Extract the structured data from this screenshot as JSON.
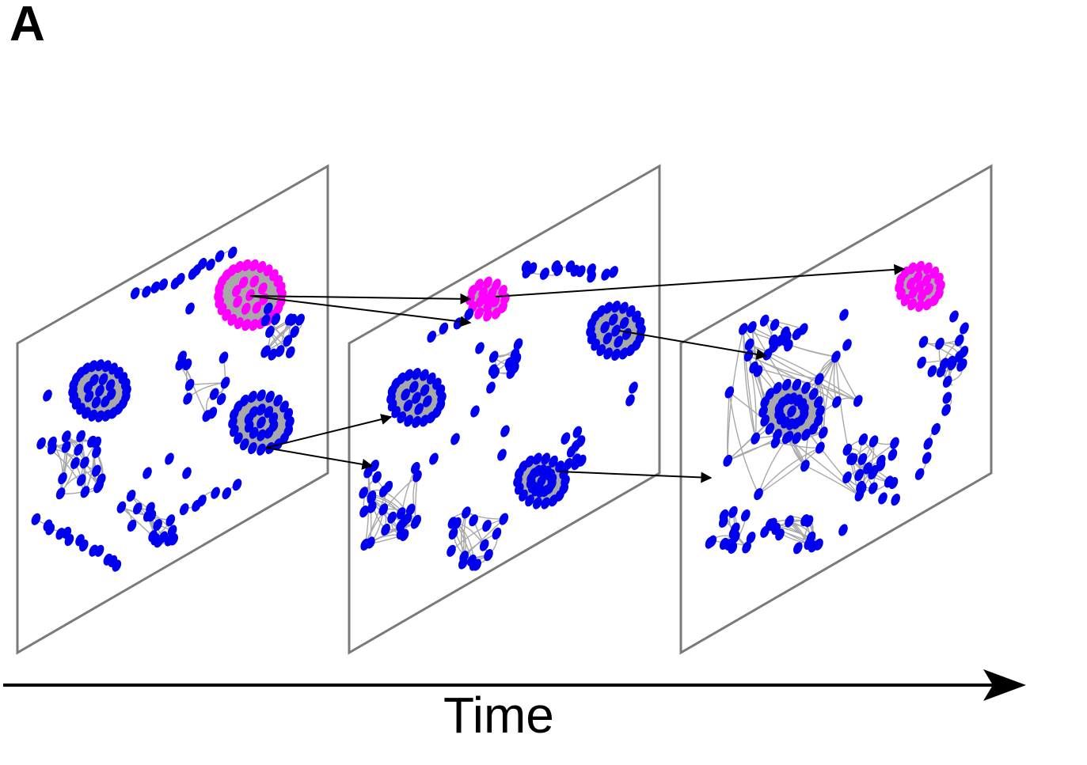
{
  "figure": {
    "panel_label": "A",
    "axis_label": "Time"
  },
  "colors": {
    "node_default": "#0000ee",
    "node_highlight": "#ff00ff",
    "edge": "#a8a8a8",
    "frame": "#7a7a7a",
    "arrow": "#000000"
  },
  "snapshots": [
    {
      "name": "snapshot-1",
      "communities": 8,
      "highlighted_community": 1
    },
    {
      "name": "snapshot-2",
      "communities": 8,
      "highlighted_community": 1
    },
    {
      "name": "snapshot-3",
      "communities": 7,
      "highlighted_community": 1
    }
  ],
  "transitions": [
    {
      "from": "snapshot-1",
      "to": "snapshot-2",
      "type": "split",
      "highlighted": true
    },
    {
      "from": "snapshot-1",
      "to": "snapshot-2",
      "type": "split",
      "highlighted": false
    },
    {
      "from": "snapshot-2",
      "to": "snapshot-3",
      "type": "continue",
      "highlighted": true
    },
    {
      "from": "snapshot-2",
      "to": "snapshot-3",
      "type": "merge",
      "highlighted": false
    }
  ]
}
